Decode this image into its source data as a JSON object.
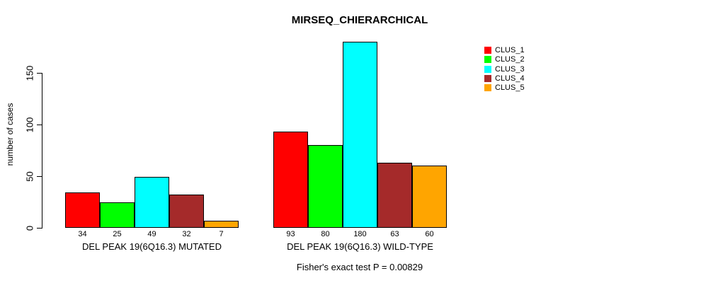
{
  "chart_data": {
    "type": "bar",
    "title": "MIRSEQ_CHIERARCHICAL",
    "ylabel": "number of cases",
    "xlabel": "",
    "yticks": [
      0,
      50,
      100,
      150
    ],
    "ylim": [
      0,
      185
    ],
    "grid": false,
    "legend_position": "top-right-inside",
    "series": [
      {
        "name": "CLUS_1",
        "color": "#FF0000",
        "values": [
          34,
          93
        ]
      },
      {
        "name": "CLUS_2",
        "color": "#00FF00",
        "values": [
          25,
          80
        ]
      },
      {
        "name": "CLUS_3",
        "color": "#00FFFF",
        "values": [
          49,
          180
        ]
      },
      {
        "name": "CLUS_4",
        "color": "#A52A2A",
        "values": [
          32,
          63
        ]
      },
      {
        "name": "CLUS_5",
        "color": "#FFA500",
        "values": [
          7,
          60
        ]
      }
    ],
    "groups": [
      {
        "label": "DEL PEAK 19(6Q16.3) MUTATED",
        "values": [
          34,
          25,
          49,
          32,
          7
        ]
      },
      {
        "label": "DEL PEAK 19(6Q16.3) WILD-TYPE",
        "values": [
          93,
          80,
          180,
          63,
          60
        ]
      }
    ],
    "annotation": "Fisher's exact test P = 0.00829"
  }
}
